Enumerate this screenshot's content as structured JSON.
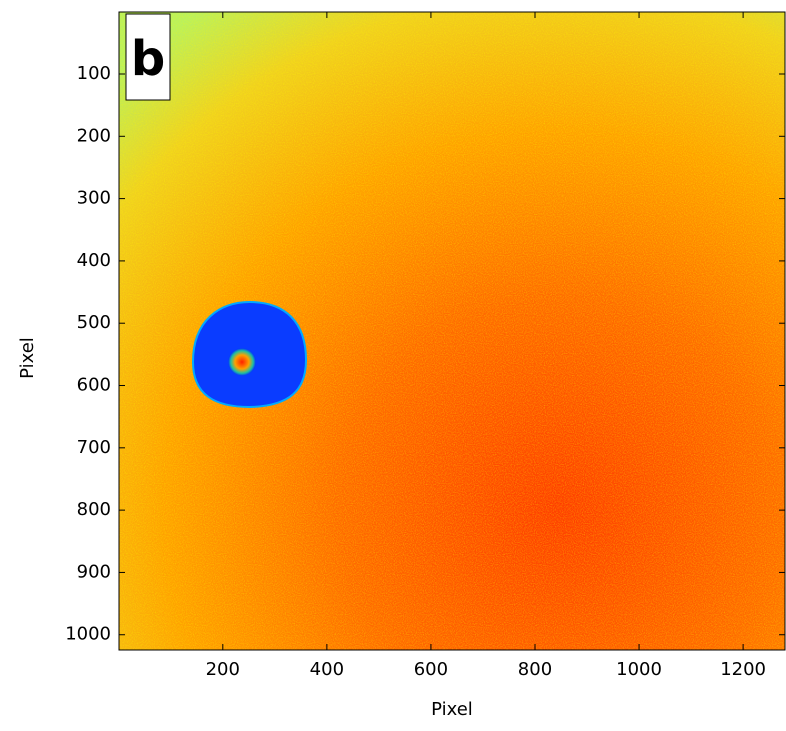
{
  "chart_data": {
    "type": "heatmap",
    "panel_label": "b",
    "x_label": "Pixel",
    "y_label": "Pixel",
    "xlim": [
      0.5,
      1280.5
    ],
    "ylim": [
      0.5,
      1024.5
    ],
    "y_reversed": true,
    "xticks": [
      200,
      400,
      600,
      800,
      1000,
      1200
    ],
    "yticks": [
      100,
      200,
      300,
      400,
      500,
      600,
      700,
      800,
      900,
      1000
    ]
  }
}
